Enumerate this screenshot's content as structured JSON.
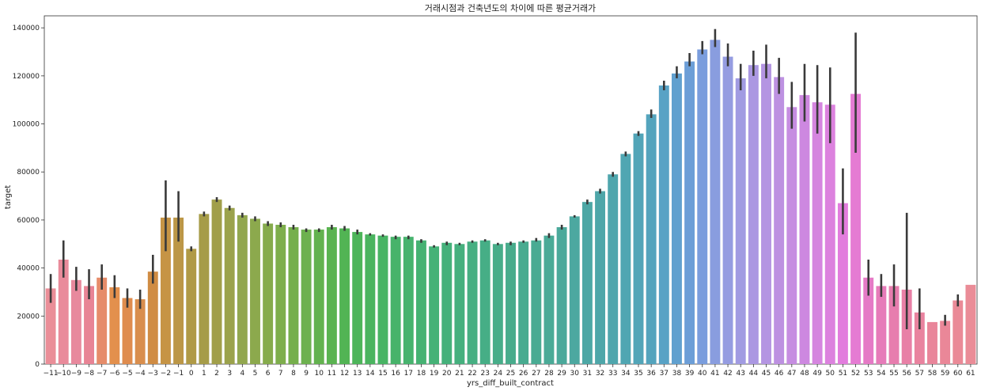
{
  "chart_data": {
    "type": "bar",
    "title": "거래시점과 건축년도의 차이에 따른 평균거래가",
    "xlabel": "yrs_diff_built_contract",
    "ylabel": "target",
    "ylim": [
      0,
      145000
    ],
    "y_ticks": [
      0,
      20000,
      40000,
      60000,
      80000,
      100000,
      120000,
      140000
    ],
    "y_tick_labels": [
      "0",
      "20000",
      "40000",
      "60000",
      "80000",
      "100000",
      "120000",
      "140000"
    ],
    "grid": false,
    "error_bars": true,
    "categories": [
      "-11",
      "-10",
      "-9",
      "-8",
      "-7",
      "-6",
      "-5",
      "-4",
      "-3",
      "-2",
      "-1",
      "0",
      "1",
      "2",
      "3",
      "4",
      "5",
      "6",
      "7",
      "8",
      "9",
      "10",
      "11",
      "12",
      "13",
      "14",
      "15",
      "16",
      "17",
      "18",
      "19",
      "20",
      "21",
      "22",
      "23",
      "24",
      "25",
      "26",
      "27",
      "28",
      "29",
      "30",
      "31",
      "32",
      "33",
      "34",
      "35",
      "36",
      "37",
      "38",
      "39",
      "40",
      "41",
      "42",
      "43",
      "44",
      "45",
      "46",
      "47",
      "48",
      "49",
      "50",
      "51",
      "52",
      "53",
      "54",
      "55",
      "56",
      "57",
      "58",
      "59",
      "60",
      "61"
    ],
    "category_labels": [
      "−11",
      "−10",
      "−9",
      "−8",
      "−7",
      "−6",
      "−5",
      "−4",
      "−3",
      "−2",
      "−1",
      "0",
      "1",
      "2",
      "3",
      "4",
      "5",
      "6",
      "7",
      "8",
      "9",
      "10",
      "11",
      "12",
      "13",
      "14",
      "15",
      "16",
      "17",
      "18",
      "19",
      "20",
      "21",
      "22",
      "23",
      "24",
      "25",
      "26",
      "27",
      "28",
      "29",
      "30",
      "31",
      "32",
      "33",
      "34",
      "35",
      "36",
      "37",
      "38",
      "39",
      "40",
      "41",
      "42",
      "43",
      "44",
      "45",
      "46",
      "47",
      "48",
      "49",
      "50",
      "51",
      "52",
      "53",
      "54",
      "55",
      "56",
      "57",
      "58",
      "59",
      "60",
      "61"
    ],
    "values": [
      31500,
      43500,
      35000,
      32500,
      36000,
      32000,
      27500,
      27000,
      38500,
      61000,
      61000,
      48000,
      62500,
      68500,
      65000,
      62000,
      60500,
      58500,
      58000,
      57000,
      56000,
      56000,
      57000,
      56500,
      55000,
      54000,
      53500,
      53000,
      53000,
      51500,
      49000,
      50500,
      50000,
      51000,
      51500,
      50000,
      50500,
      51000,
      51500,
      53500,
      57000,
      61500,
      67500,
      72000,
      79000,
      87500,
      96000,
      104000,
      116000,
      121000,
      126000,
      131000,
      135000,
      128000,
      119000,
      124500,
      125000,
      119500,
      107000,
      112000,
      109000,
      108000,
      67000,
      112500,
      36000,
      32500,
      32500,
      31000,
      21500,
      17500,
      18000,
      26500,
      33000
    ],
    "error_low": [
      25500,
      36000,
      30500,
      27000,
      31000,
      27500,
      23500,
      23000,
      33500,
      47000,
      51000,
      47000,
      61500,
      67500,
      64000,
      61000,
      59500,
      57500,
      57000,
      56000,
      55000,
      55000,
      56000,
      55500,
      54000,
      53500,
      53000,
      52000,
      52000,
      50500,
      48500,
      49500,
      49500,
      50500,
      51000,
      49500,
      49500,
      50500,
      51000,
      52500,
      56000,
      61000,
      66500,
      71000,
      78000,
      86500,
      95000,
      102500,
      114000,
      119000,
      124000,
      129000,
      132000,
      124000,
      114000,
      120000,
      119000,
      112500,
      98000,
      101000,
      96000,
      92000,
      54000,
      88000,
      28500,
      28000,
      24000,
      14500,
      14500,
      17500,
      16000,
      24000,
      33000
    ],
    "error_high": [
      37500,
      51500,
      40500,
      39500,
      41500,
      37000,
      31500,
      31000,
      45500,
      76500,
      72000,
      49000,
      63500,
      69500,
      66000,
      63000,
      61500,
      59500,
      59000,
      58000,
      56500,
      56500,
      58000,
      57500,
      56000,
      54500,
      54000,
      53500,
      53500,
      52000,
      49500,
      51000,
      50500,
      51500,
      52000,
      50500,
      51000,
      51500,
      52500,
      54500,
      58000,
      62000,
      68500,
      73000,
      80000,
      88500,
      97000,
      106000,
      118000,
      124000,
      129500,
      134500,
      139500,
      133500,
      125000,
      130500,
      133000,
      127500,
      117500,
      125000,
      124500,
      123500,
      81500,
      138000,
      43500,
      37500,
      41500,
      63000,
      31500,
      17500,
      20500,
      29000,
      33000
    ],
    "colors": [
      "#ea8e98",
      "#e98b9b",
      "#e8899d",
      "#e88495",
      "#e68c6a",
      "#e3904d",
      "#df8c4e",
      "#d98e4d",
      "#d08c43",
      "#c69445",
      "#bc9747",
      "#b09a46",
      "#a69c48",
      "#a19f4a",
      "#9ba24c",
      "#92a74f",
      "#8ca94d",
      "#86ab4c",
      "#7eae4c",
      "#76af4c",
      "#6db14f",
      "#63b24f",
      "#5ab350",
      "#52b454",
      "#4db55a",
      "#4ab45f",
      "#48b464",
      "#47b36a",
      "#47b36e",
      "#46b273",
      "#45b277",
      "#45b17b",
      "#45b07e",
      "#46af82",
      "#46ae86",
      "#47ad89",
      "#48ac8c",
      "#48ab90",
      "#49ab93",
      "#4aaa97",
      "#4ba99b",
      "#4ca8a0",
      "#4da7a5",
      "#4ea6a9",
      "#4fa6ad",
      "#50a6b2",
      "#52a5b8",
      "#54a4bd",
      "#58a2c5",
      "#60a0cf",
      "#6c9ed7",
      "#7a9ddd",
      "#899ddf",
      "#959ce1",
      "#a19be2",
      "#ab98e2",
      "#b495e2",
      "#bd91e1",
      "#c68de1",
      "#cd88e0",
      "#d585df",
      "#dc82de",
      "#e27ddd",
      "#e57bd3",
      "#e57ac6",
      "#e67bb9",
      "#e77dae",
      "#e880a6",
      "#e9839f",
      "#e9859a",
      "#ea8798",
      "#ea8a97",
      "#ea8c97"
    ]
  }
}
